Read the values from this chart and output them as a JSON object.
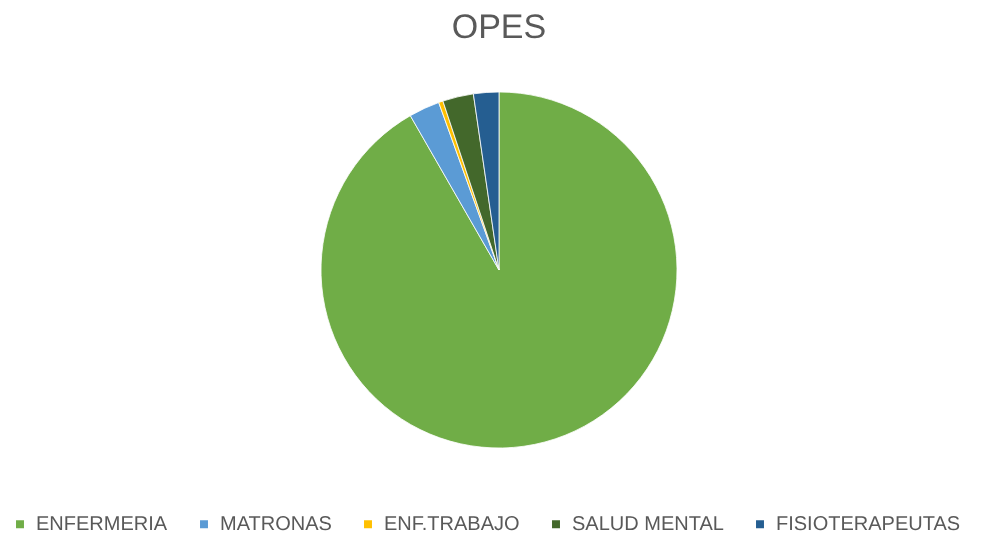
{
  "chart_data": {
    "type": "pie",
    "title": "OPES",
    "categories": [
      "ENFERMERIA",
      "MATRONAS",
      "ENF.TRABAJO",
      "SALUD MENTAL",
      "FISIOTERAPEUTAS"
    ],
    "values": [
      91.7,
      2.8,
      0.4,
      2.8,
      2.3
    ],
    "colors": [
      "#70ad47",
      "#5b9bd5",
      "#ffc000",
      "#43682b",
      "#255e91"
    ],
    "legend": "bottom"
  }
}
